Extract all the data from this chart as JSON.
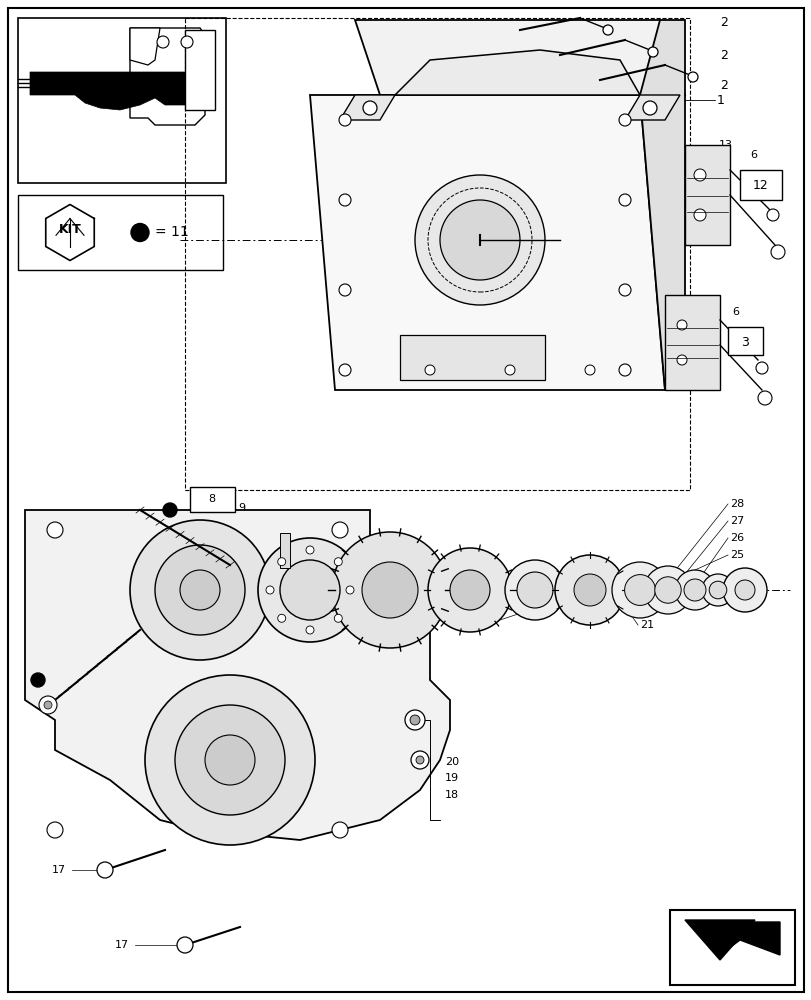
{
  "bg_color": "#ffffff",
  "line_color": "#000000",
  "fig_width": 8.12,
  "fig_height": 10.0,
  "dpi": 100,
  "border_color": "#000000"
}
